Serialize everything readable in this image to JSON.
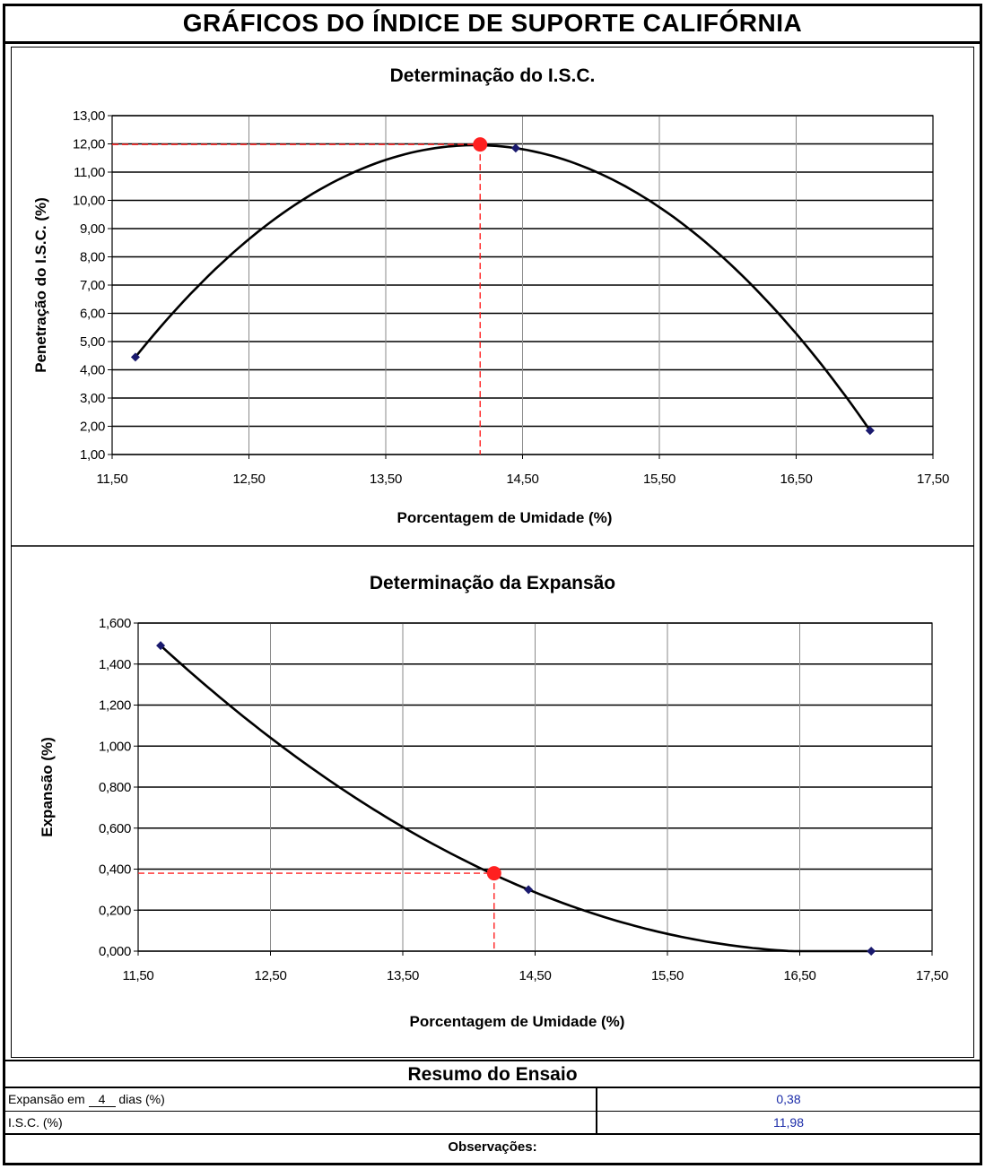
{
  "page": {
    "main_title": "GRÁFICOS DO ÍNDICE DE SUPORTE CALIFÓRNIA"
  },
  "chart_data": [
    {
      "type": "scatter",
      "title": "Determinação do I.S.C.",
      "xlabel": "Porcentagem de Umidade (%)",
      "ylabel": "Penetração do I.S.C. (%)",
      "xlim": [
        11.5,
        17.5
      ],
      "ylim": [
        1.0,
        13.0
      ],
      "x_ticks": [
        "11,50",
        "12,50",
        "13,50",
        "14,50",
        "15,50",
        "16,50",
        "17,50"
      ],
      "y_ticks": [
        "1,00",
        "2,00",
        "3,00",
        "4,00",
        "5,00",
        "6,00",
        "7,00",
        "8,00",
        "9,00",
        "10,00",
        "11,00",
        "12,00",
        "13,00"
      ],
      "grid": true,
      "series": [
        {
          "points": [
            [
              11.67,
              4.45
            ],
            [
              14.45,
              11.85
            ],
            [
              17.04,
              1.85
            ]
          ],
          "color": "#1a1a6e"
        }
      ],
      "trendline": {
        "type": "polynomial-2",
        "color": "#000000"
      },
      "result_point": {
        "x": 14.19,
        "y": 11.98,
        "color": "#ff2020"
      },
      "guide_color": "#ff2020"
    },
    {
      "type": "scatter",
      "title": "Determinação da  Expansão",
      "xlabel": "Porcentagem de Umidade (%)",
      "ylabel": "Expansão (%)",
      "xlim": [
        11.5,
        17.5
      ],
      "ylim": [
        0.0,
        1.6
      ],
      "x_ticks": [
        "11,50",
        "12,50",
        "13,50",
        "14,50",
        "15,50",
        "16,50",
        "17,50"
      ],
      "y_ticks": [
        "0,000",
        "0,200",
        "0,400",
        "0,600",
        "0,800",
        "1,000",
        "1,200",
        "1,400",
        "1,600"
      ],
      "grid": true,
      "series": [
        {
          "points": [
            [
              11.67,
              1.49
            ],
            [
              14.45,
              0.3
            ],
            [
              17.04,
              0.0
            ]
          ],
          "color": "#1a1a6e"
        }
      ],
      "trendline": {
        "type": "polynomial-2",
        "color": "#000000"
      },
      "result_point": {
        "x": 14.19,
        "y": 0.38,
        "color": "#ff2020"
      },
      "guide_color": "#ff2020"
    }
  ],
  "summary": {
    "title": "Resumo do Ensaio",
    "expansion_label_pre": "Expansão em ",
    "expansion_days": "4",
    "expansion_label_post": " dias (%)",
    "expansion_value": "0,38",
    "isc_label": "I.S.C. (%)",
    "isc_value": "11,98",
    "observations_label": "Observações:",
    "value_color": "#1a2ba8"
  }
}
